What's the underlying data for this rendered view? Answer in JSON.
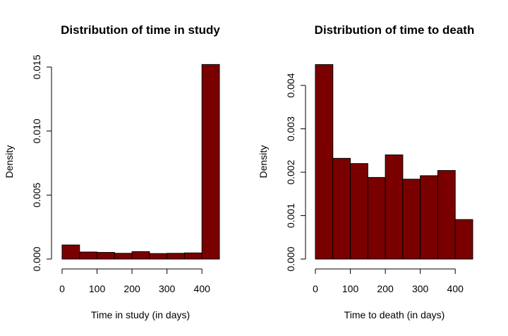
{
  "chart_data": [
    {
      "type": "bar",
      "title": "Distribution of time in study",
      "xlabel": "Time in study (in days)",
      "ylabel": "Density",
      "bar_color": "#7a0000",
      "bin_edges": [
        0,
        50,
        100,
        150,
        200,
        250,
        300,
        350,
        400,
        450
      ],
      "values": [
        0.0011,
        0.00055,
        0.00052,
        0.00045,
        0.00058,
        0.00043,
        0.00045,
        0.00048,
        0.0152
      ],
      "xlim": [
        0,
        450
      ],
      "ylim": [
        0,
        0.015
      ],
      "xticks": [
        0,
        100,
        200,
        300,
        400
      ],
      "xtick_labels": [
        "0",
        "100",
        "200",
        "300",
        "400"
      ],
      "yticks": [
        0,
        0.005,
        0.01,
        0.015
      ],
      "ytick_labels": [
        "0.000",
        "0.005",
        "0.010",
        "0.015"
      ],
      "grid": false
    },
    {
      "type": "bar",
      "title": "Distribution of time to death",
      "xlabel": "Time to death (in days)",
      "ylabel": "Density",
      "bar_color": "#7a0000",
      "bin_edges": [
        0,
        50,
        100,
        150,
        200,
        250,
        300,
        350,
        400,
        450
      ],
      "values": [
        0.00448,
        0.00232,
        0.0022,
        0.00188,
        0.0024,
        0.00184,
        0.00192,
        0.00204,
        0.00091
      ],
      "xlim": [
        0,
        450
      ],
      "ylim": [
        0,
        0.004
      ],
      "xticks": [
        0,
        100,
        200,
        300,
        400
      ],
      "xtick_labels": [
        "0",
        "100",
        "200",
        "300",
        "400"
      ],
      "yticks": [
        0,
        0.001,
        0.002,
        0.003,
        0.004
      ],
      "ytick_labels": [
        "0.000",
        "0.001",
        "0.002",
        "0.003",
        "0.004"
      ],
      "grid": false
    }
  ]
}
